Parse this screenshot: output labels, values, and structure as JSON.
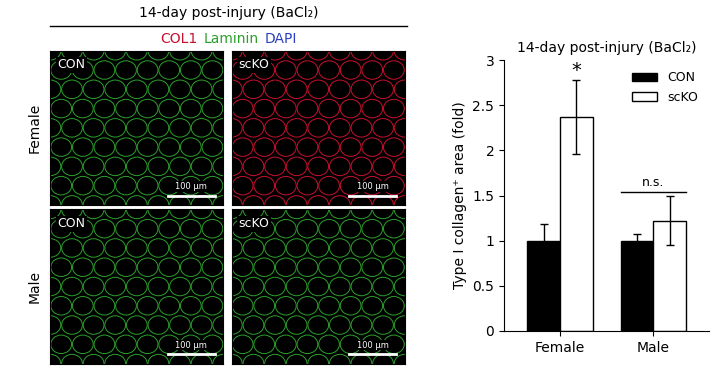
{
  "image_panel": {
    "title": "14-day post-injury (BaCl₂)",
    "stains": [
      {
        "text": "COL1",
        "color": "#c8102e"
      },
      {
        "text": "Laminin",
        "color": "#2ca02c"
      },
      {
        "text": "DAPI",
        "color": "#2a3fbf"
      }
    ],
    "columns": [
      "CON",
      "scKO"
    ],
    "rows": [
      "Female",
      "Male"
    ],
    "scale_bar": "100 µm"
  },
  "chart_data": {
    "type": "bar",
    "title": "14-day post-injury (BaCl₂)",
    "y_label": "Type I collagen⁺ area (fold)",
    "categories": [
      "Female",
      "Male"
    ],
    "series": [
      {
        "name": "CON",
        "color": "#000000",
        "values": [
          1,
          1
        ],
        "errors": [
          0.18,
          0.07
        ]
      },
      {
        "name": "scKO",
        "color": "#ffffff",
        "values": [
          2.37,
          1.22
        ],
        "errors": [
          0.41,
          0.27
        ]
      }
    ],
    "annotations": [
      {
        "category": "Female",
        "text": "*"
      },
      {
        "category": "Male",
        "text": "n.s."
      }
    ],
    "ylim": [
      0,
      3
    ],
    "yticks": [
      0,
      0.5,
      1,
      1.5,
      2,
      2.5,
      3
    ],
    "legend": "upper right",
    "grid": false
  }
}
